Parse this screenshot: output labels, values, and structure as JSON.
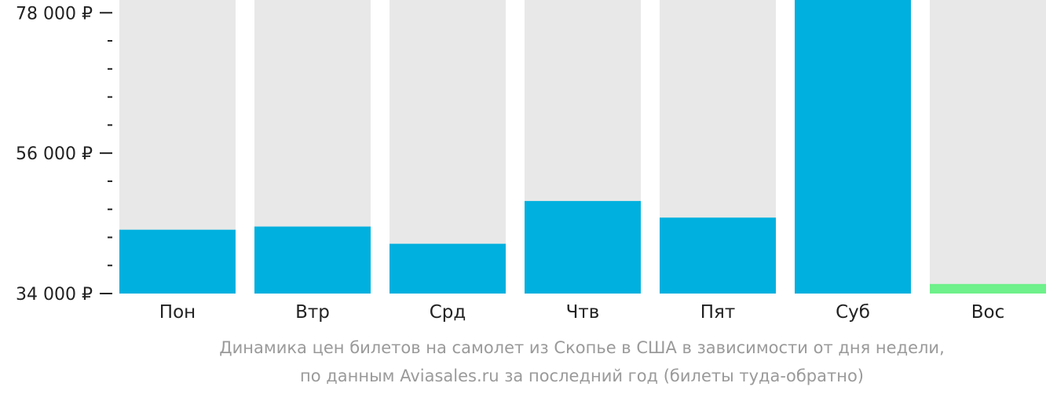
{
  "chart_data": {
    "type": "bar",
    "categories": [
      "Пон",
      "Втр",
      "Срд",
      "Чтв",
      "Пят",
      "Суб",
      "Вос"
    ],
    "values": [
      44000,
      44500,
      41800,
      48500,
      45900,
      80000,
      35500
    ],
    "ylim": [
      34000,
      80000
    ],
    "yticks_major": [
      34000,
      56000,
      78000
    ],
    "ytick_labels": [
      "34 000 ₽",
      "56 000 ₽",
      "78 000 ₽"
    ],
    "minor_tick_step": 4400,
    "bar_color": "#00b0de",
    "min_bar_color": "#6ef08a",
    "background_bar_color": "#e8e8e8",
    "grid": false,
    "legend": "none"
  },
  "caption": {
    "line1": "Динамика цен билетов на самолет из Скопье в США в зависимости от дня недели,",
    "line2": "по данным Aviasales.ru за последний год (билеты туда-обратно)"
  }
}
